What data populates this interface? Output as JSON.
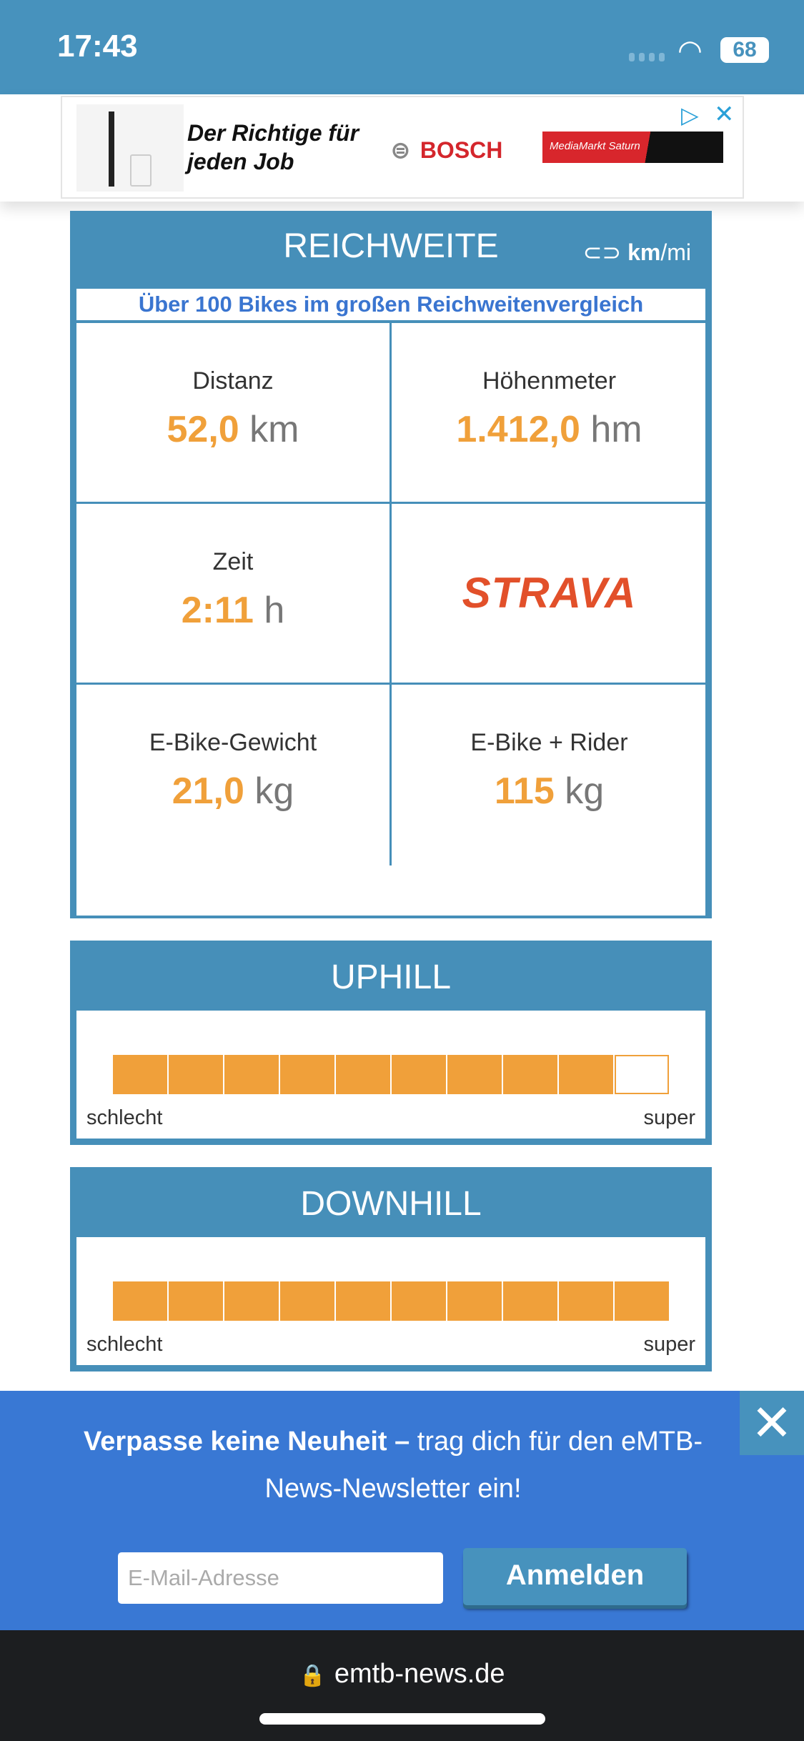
{
  "status": {
    "time": "17:43",
    "battery": "68"
  },
  "ad": {
    "slogan_line1": "Der Richtige für",
    "slogan_line2": "jeden Job",
    "brand": "BOSCH",
    "retailer": "MediaMarkt Saturn"
  },
  "range": {
    "title": "REICHWEITE",
    "unit_toggle_bold": "km",
    "unit_toggle_rest": "/mi",
    "subtitle": "Über 100 Bikes im großen Reichweitenvergleich",
    "cells": [
      {
        "label": "Distanz",
        "value": "52,0",
        "unit": "km"
      },
      {
        "label": "Höhenmeter",
        "value": "1.412,0",
        "unit": "hm"
      },
      {
        "label": "Zeit",
        "value": "2:11",
        "unit": "h"
      },
      {
        "logo": "STRAVA"
      },
      {
        "label": "E-Bike-Gewicht",
        "value": "21,0",
        "unit": "kg"
      },
      {
        "label": "E-Bike + Rider",
        "value": "115",
        "unit": "kg"
      }
    ]
  },
  "uphill": {
    "title": "UPHILL",
    "rating": 9,
    "max": 10,
    "low_label": "schlecht",
    "high_label": "super"
  },
  "downhill": {
    "title": "DOWNHILL",
    "rating": 10,
    "max": 10,
    "low_label": "schlecht",
    "high_label": "super"
  },
  "newsletter": {
    "bold": "Verpasse keine Neuheit –",
    "rest": " trag dich für den eMTB-News-Newsletter ein!",
    "placeholder": "E-Mail-Adresse",
    "button": "Anmelden",
    "close": "✕"
  },
  "browser": {
    "url": "emtb-news.de"
  },
  "colors": {
    "brand_blue": "#468fb9",
    "accent_orange": "#f0a03a",
    "newsletter_blue": "#3978d4",
    "strava": "#e2502a"
  }
}
